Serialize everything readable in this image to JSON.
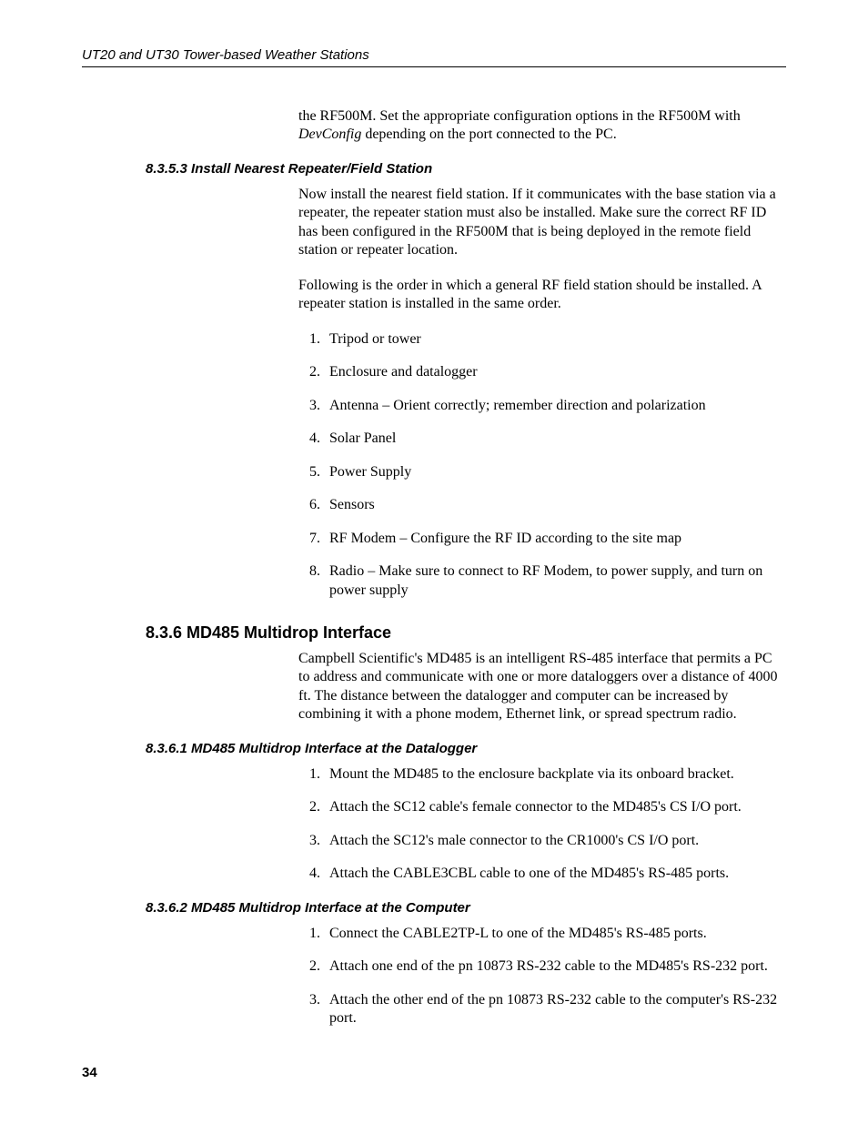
{
  "header": {
    "title": "UT20 and UT30 Tower-based Weather Stations"
  },
  "intro": {
    "p1_a": "the RF500M.  Set the appropriate configuration options in the RF500M with ",
    "p1_em": "DevConfig",
    "p1_b": " depending on the port connected to the PC."
  },
  "s8353": {
    "heading": "8.3.5.3  Install Nearest Repeater/Field Station",
    "p1": "Now install the nearest field station.  If it communicates with the base station via a repeater, the repeater station must also be installed.  Make sure the correct RF ID has been configured in the RF500M that is being deployed in the remote field station or repeater location.",
    "p2": "Following is the order in which a general RF field station should be installed.  A repeater station is installed in the same order.",
    "list": [
      "Tripod or tower",
      "Enclosure and datalogger",
      "Antenna – Orient correctly; remember direction and polarization",
      "Solar Panel",
      "Power Supply",
      "Sensors",
      "RF Modem – Configure the RF ID according to the site map",
      "Radio – Make sure to connect to RF Modem, to power supply, and turn on power supply"
    ]
  },
  "s836": {
    "heading": "8.3.6  MD485 Multidrop Interface",
    "p1": "Campbell Scientific's MD485 is an intelligent RS-485 interface that permits a PC to address and communicate with one or more dataloggers over a distance of 4000 ft.  The distance between the datalogger and computer can be increased by combining it with a phone modem, Ethernet link, or spread spectrum radio."
  },
  "s8361": {
    "heading": "8.3.6.1  MD485 Multidrop Interface at the Datalogger",
    "list": [
      "Mount the MD485 to the enclosure backplate via its onboard bracket.",
      "Attach the SC12 cable's female connector to the MD485's CS I/O port.",
      "Attach the SC12's male connector to the CR1000's CS I/O port.",
      "Attach the CABLE3CBL cable to one of the MD485's RS-485 ports."
    ]
  },
  "s8362": {
    "heading": "8.3.6.2  MD485 Multidrop Interface at the Computer",
    "list": [
      "Connect the CABLE2TP-L to one of the MD485's RS-485 ports.",
      "Attach one end of the pn 10873 RS-232 cable to the MD485's RS-232 port.",
      "Attach the other end of the pn 10873 RS-232 cable to the computer's RS-232 port."
    ]
  },
  "footer": {
    "page": "34"
  }
}
